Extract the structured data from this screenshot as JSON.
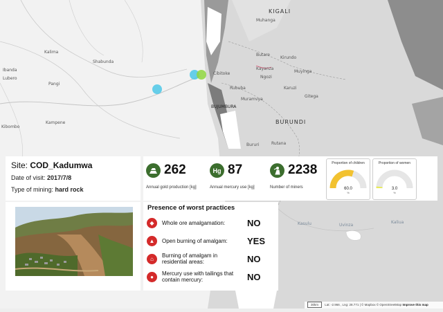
{
  "map": {
    "place_labels": [
      "KIGALI",
      "Muhanga",
      "Butare",
      "Muyinga",
      "Kayanza",
      "Ngozi",
      "Kirundo",
      "Cibitoke",
      "Rububa",
      "Karuzi",
      "Gitega",
      "Muramvya",
      "BUJUMBURA",
      "BURUNDI",
      "Rutana",
      "Bururi",
      "Kalima",
      "Shabunda",
      "Kampene",
      "Pangi",
      "Ibanda",
      "Lubero",
      "Kibombo",
      "Kasulu",
      "Uvinza",
      "Kaliua"
    ],
    "markers": [
      {
        "color": "#4dc8e8"
      },
      {
        "color": "#4dc8e8"
      },
      {
        "color": "#8fd640"
      }
    ]
  },
  "site": {
    "site_prefix": "Site:",
    "site_name": "COD_Kadumwa",
    "date_label": "Date of visit:",
    "date_value": "2017/7/8",
    "mining_label": "Type of mining:",
    "mining_value": "hard rock"
  },
  "stats": [
    {
      "icon": "gold-bars-icon",
      "value": "262",
      "label": "Annual gold production [kg]"
    },
    {
      "icon": "mercury-icon",
      "value": "87",
      "label": "Annual mercury use [kg]",
      "glyph": "Hg"
    },
    {
      "icon": "miner-icon",
      "value": "2238",
      "label": "Number of miners"
    }
  ],
  "gauges": [
    {
      "title": "Proportion of children",
      "value": "60.0",
      "unit": "%",
      "fraction": 0.6,
      "color": "#f2c230"
    },
    {
      "title": "Proportion of women",
      "value": "3.0",
      "unit": "%",
      "fraction": 0.03,
      "color": "#e8ea5a"
    }
  ],
  "practices": {
    "title": "Presence of worst practices",
    "items": [
      {
        "label": "Whole ore amalgamation:",
        "value": "NO",
        "icon": "ore-icon"
      },
      {
        "label": "Open burning of amalgam:",
        "value": "YES",
        "icon": "fire-icon"
      },
      {
        "label": "Burning of amalgam in residential areas:",
        "value": "NO",
        "icon": "house-fire-icon"
      },
      {
        "label": "Mercury use with tailings that contain mercury:",
        "value": "NO",
        "icon": "tailings-icon"
      }
    ]
  },
  "attribution": {
    "scale": "30km",
    "coords": "Lat: -2.966 , Lng: 28.771",
    "credits": "| © Mapbox © OpenStreetMap",
    "improve": "Improve this map"
  },
  "colors": {
    "accent_green": "#3c6e2e",
    "practice_red": "#d42a2a"
  }
}
